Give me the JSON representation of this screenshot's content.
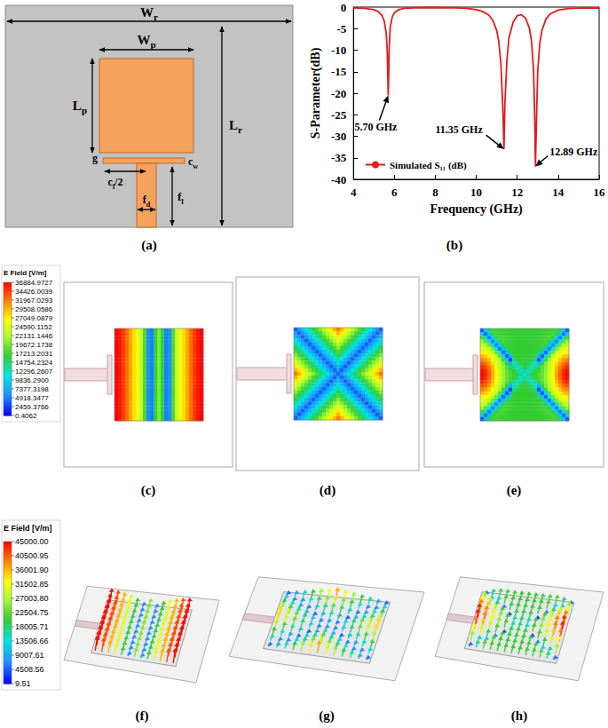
{
  "panel_labels": [
    "(a)",
    "(b)",
    "(c)",
    "(d)",
    "(e)",
    "(f)",
    "(g)",
    "(h)"
  ],
  "antenna_labels": {
    "Wr": {
      "main": "W",
      "sub": "r"
    },
    "Lr": {
      "main": "L",
      "sub": "r"
    },
    "Wp": {
      "main": "W",
      "sub": "p"
    },
    "Lp": {
      "main": "L",
      "sub": "p"
    },
    "g": {
      "main": "g"
    },
    "cl_half": {
      "main": "c",
      "sub": "l",
      "suffix": "/2"
    },
    "cw": {
      "main": "c",
      "sub": "w"
    },
    "fl": {
      "main": "f",
      "sub": "l"
    },
    "fd": {
      "main": "f",
      "sub": "d"
    }
  },
  "chart_data": {
    "type": "line",
    "x_label": "Frequency (GHz)",
    "y_label": "S-Parameter(dB)",
    "xlim": [
      4,
      16
    ],
    "xticks": [
      4,
      6,
      8,
      10,
      12,
      14,
      16
    ],
    "ylim": [
      -40,
      0
    ],
    "yticks": [
      -40,
      -35,
      -30,
      -25,
      -20,
      -15,
      -10,
      -5,
      0
    ],
    "grid": false,
    "legend": "lower left",
    "x": [
      4,
      4.5,
      5,
      5.2,
      5.4,
      5.5,
      5.6,
      5.65,
      5.7,
      5.75,
      5.8,
      5.9,
      6,
      6.2,
      6.5,
      7,
      8,
      9,
      9.5,
      10,
      10.3,
      10.6,
      10.8,
      11,
      11.1,
      11.2,
      11.3,
      11.35,
      11.4,
      11.5,
      11.6,
      11.8,
      12,
      12.2,
      12.4,
      12.6,
      12.7,
      12.8,
      12.85,
      12.89,
      12.95,
      13,
      13.1,
      13.2,
      13.4,
      13.6,
      14,
      14.5,
      15,
      15.5,
      16
    ],
    "series": [
      {
        "name": "Simulated S₁₁ (dB)",
        "color": "#e41a1c",
        "values": [
          -0.2,
          -0.3,
          -0.6,
          -1,
          -2,
          -3.2,
          -6,
          -10,
          -20.5,
          -9,
          -4.5,
          -2.2,
          -1.3,
          -0.6,
          -0.3,
          -0.15,
          -0.1,
          -0.2,
          -0.3,
          -0.6,
          -1,
          -1.8,
          -3,
          -5.5,
          -8,
          -13,
          -24,
          -33,
          -22,
          -12,
          -7,
          -3.5,
          -2,
          -1.8,
          -2.5,
          -5,
          -8,
          -15,
          -25,
          -37,
          -24,
          -15,
          -8.5,
          -5.5,
          -2.8,
          -1.6,
          -0.7,
          -0.35,
          -0.25,
          -0.2,
          -0.3
        ]
      }
    ],
    "annotations": [
      {
        "text": "5.70 GHz",
        "x": 5.7,
        "y": -20.5
      },
      {
        "text": "11.35 GHz",
        "x": 11.35,
        "y": -33
      },
      {
        "text": "12.89 GHz",
        "x": 12.89,
        "y": -37
      }
    ]
  },
  "field_colorbars": [
    {
      "title": "E Field [V/m]",
      "range": [
        0.4062,
        36884.9727
      ],
      "ticks": [
        36884.9727,
        34426.0039,
        31967.0293,
        29508.0586,
        27049.0879,
        24590.1152,
        22131.1446,
        19672.1738,
        17213.2031,
        14754.2324,
        12296.2607,
        {
          "value": 9836.29,
          "label": "9836.2900"
        },
        7377.3198,
        4918.3477,
        2459.3766,
        0.4062
      ]
    },
    {
      "title": "E Field [V/m]",
      "range": [
        9.51,
        45000
      ],
      "ticks": [
        {
          "value": 45000,
          "label": "45000.00"
        },
        40500.95,
        {
          "value": 36001.9,
          "label": "36001.90"
        },
        31502.85,
        {
          "value": 27003.8,
          "label": "27003.80"
        },
        22504.75,
        18005.71,
        13506.66,
        9007.61,
        4508.56,
        9.51
      ]
    }
  ]
}
